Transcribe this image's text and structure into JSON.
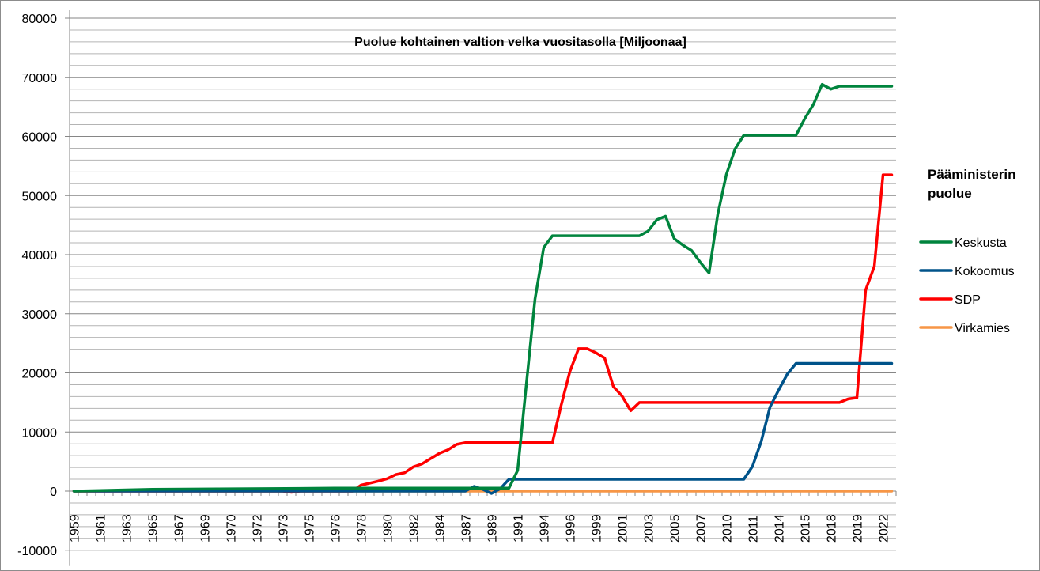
{
  "chart_data": {
    "type": "line",
    "title": "Puolue kohtainen valtion velka vuositasolla [Miljoonaa]",
    "xlabel": "",
    "ylabel": "",
    "ylim": [
      -10000,
      80000
    ],
    "y_major_step": 10000,
    "y_minor_step": 2000,
    "y_tick_labels": [
      "-10000",
      "0",
      "10000",
      "20000",
      "30000",
      "40000",
      "50000",
      "60000",
      "70000",
      "80000"
    ],
    "n_categories": 95,
    "label_every": 3,
    "x_tick_labels": [
      "1959",
      "1961",
      "1963",
      "1965",
      "1967",
      "1969",
      "1970",
      "1972",
      "1973",
      "1975",
      "1976",
      "1978",
      "1980",
      "1982",
      "1984",
      "1987",
      "1989",
      "1991",
      "1994",
      "1996",
      "1999",
      "2001",
      "2003",
      "2005",
      "2007",
      "2010",
      "2011",
      "2014",
      "2015",
      "2018",
      "2019",
      "2022"
    ],
    "grid": true,
    "legend": {
      "title": "Pääministerin puolue",
      "placement": "right"
    },
    "series": [
      {
        "name": "Keskusta",
        "color": "#00843d",
        "points": [
          [
            0,
            0
          ],
          [
            9,
            300
          ],
          [
            30,
            500
          ],
          [
            49,
            500
          ],
          [
            50,
            500
          ],
          [
            51,
            3500
          ],
          [
            53,
            32500
          ],
          [
            54,
            41200
          ],
          [
            55,
            43200
          ],
          [
            65,
            43200
          ],
          [
            66,
            44000
          ],
          [
            67,
            45900
          ],
          [
            68,
            46500
          ],
          [
            69,
            42700
          ],
          [
            70,
            41600
          ],
          [
            71,
            40700
          ],
          [
            72,
            38700
          ],
          [
            73,
            36900
          ],
          [
            74,
            46800
          ],
          [
            75,
            53600
          ],
          [
            76,
            57900
          ],
          [
            77,
            60200
          ],
          [
            83,
            60200
          ],
          [
            84,
            63000
          ],
          [
            85,
            65400
          ],
          [
            86,
            68800
          ],
          [
            87,
            68000
          ],
          [
            88,
            68500
          ],
          [
            94,
            68500
          ]
        ]
      },
      {
        "name": "Kokoomus",
        "color": "#00538a",
        "points": [
          [
            0,
            0
          ],
          [
            45,
            0
          ],
          [
            46,
            800
          ],
          [
            47,
            300
          ],
          [
            48,
            -400
          ],
          [
            49,
            400
          ],
          [
            50,
            2000
          ],
          [
            77,
            2000
          ],
          [
            78,
            4200
          ],
          [
            79,
            8400
          ],
          [
            80,
            14200
          ],
          [
            81,
            17100
          ],
          [
            82,
            19800
          ],
          [
            83,
            21600
          ],
          [
            94,
            21600
          ]
        ]
      },
      {
        "name": "SDP",
        "color": "#ff0000",
        "points": [
          [
            0,
            0
          ],
          [
            24,
            0
          ],
          [
            25,
            -200
          ],
          [
            26,
            0
          ],
          [
            32,
            0
          ],
          [
            33,
            1000
          ],
          [
            35,
            1700
          ],
          [
            36,
            2100
          ],
          [
            37,
            2800
          ],
          [
            38,
            3100
          ],
          [
            39,
            4100
          ],
          [
            40,
            4600
          ],
          [
            41,
            5500
          ],
          [
            42,
            6400
          ],
          [
            43,
            7000
          ],
          [
            44,
            7900
          ],
          [
            45,
            8200
          ],
          [
            55,
            8200
          ],
          [
            56,
            14500
          ],
          [
            57,
            20200
          ],
          [
            58,
            24100
          ],
          [
            59,
            24100
          ],
          [
            60,
            23400
          ],
          [
            61,
            22500
          ],
          [
            62,
            17700
          ],
          [
            63,
            16100
          ],
          [
            64,
            13600
          ],
          [
            65,
            15000
          ],
          [
            88,
            15000
          ],
          [
            89,
            15600
          ],
          [
            90,
            15800
          ],
          [
            91,
            34000
          ],
          [
            92,
            38000
          ],
          [
            93,
            53500
          ],
          [
            94,
            53500
          ]
        ]
      },
      {
        "name": "Virkamies",
        "color": "#f79646",
        "points": [
          [
            0,
            0
          ],
          [
            94,
            0
          ]
        ]
      }
    ]
  }
}
